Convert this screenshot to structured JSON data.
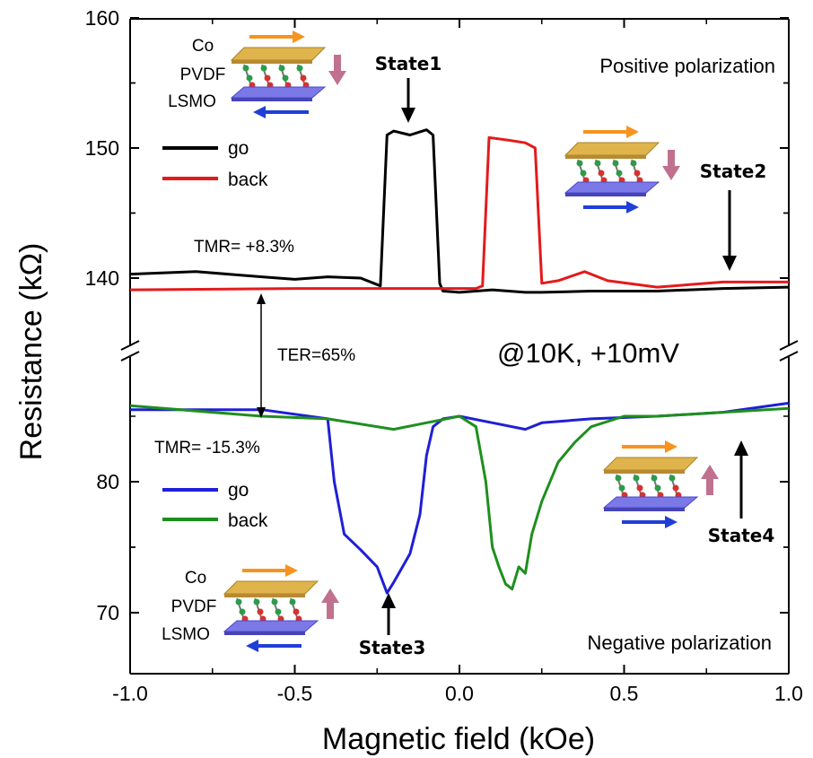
{
  "chart_data": {
    "type": "line",
    "xlabel": "Magnetic field (kOe)",
    "ylabel": "Resistance (kΩ)",
    "xlim": [
      -1.0,
      1.0
    ],
    "x_ticks": [
      "-1.0",
      "-0.5",
      "0.0",
      "0.5",
      "1.0"
    ],
    "panels": [
      {
        "name": "Positive polarization",
        "ylim": [
          135,
          160
        ],
        "y_ticks": [
          "140",
          "150",
          "160"
        ],
        "tmr": "TMR= +8.3%",
        "series": [
          {
            "name": "go",
            "color": "#000000",
            "x": [
              -1.0,
              -0.8,
              -0.6,
              -0.5,
              -0.4,
              -0.3,
              -0.24,
              -0.22,
              -0.2,
              -0.15,
              -0.1,
              -0.08,
              -0.06,
              -0.05,
              0.0,
              0.1,
              0.2,
              0.25,
              0.4,
              0.6,
              0.8,
              1.0
            ],
            "y": [
              140.3,
              140.5,
              140.1,
              139.9,
              140.1,
              140.0,
              139.4,
              151.0,
              151.3,
              151.0,
              151.4,
              151.0,
              139.6,
              139.0,
              138.9,
              139.1,
              138.9,
              138.9,
              139.0,
              139.0,
              139.2,
              139.3
            ]
          },
          {
            "name": "back",
            "color": "#e41a1c",
            "x": [
              -1.0,
              -0.5,
              -0.2,
              0.0,
              0.05,
              0.07,
              0.09,
              0.15,
              0.2,
              0.23,
              0.25,
              0.3,
              0.38,
              0.45,
              0.6,
              0.8,
              1.0
            ],
            "y": [
              139.1,
              139.2,
              139.2,
              139.2,
              139.2,
              139.4,
              150.8,
              150.6,
              150.4,
              150.0,
              139.6,
              139.8,
              140.5,
              139.8,
              139.3,
              139.7,
              139.7
            ]
          }
        ],
        "states": [
          "State1",
          "State2"
        ],
        "layers": [
          "Co",
          "PVDF",
          "LSMO"
        ]
      },
      {
        "name": "Negative polarization",
        "ylim": [
          67,
          90
        ],
        "y_ticks": [
          "70",
          "80"
        ],
        "tmr": "TMR= -15.3%",
        "series": [
          {
            "name": "go",
            "color": "#1f1fd6",
            "x": [
              -1.0,
              -0.6,
              -0.4,
              -0.38,
              -0.35,
              -0.3,
              -0.25,
              -0.22,
              -0.2,
              -0.15,
              -0.12,
              -0.1,
              -0.08,
              -0.05,
              0.0,
              0.1,
              0.2,
              0.25,
              0.4,
              0.6,
              0.8,
              1.0
            ],
            "y": [
              85.5,
              85.5,
              84.8,
              80.0,
              76.0,
              74.8,
              73.5,
              71.5,
              72.3,
              74.5,
              77.5,
              82.0,
              84.2,
              84.8,
              85.0,
              84.5,
              84.0,
              84.5,
              84.8,
              85.0,
              85.3,
              86.0
            ]
          },
          {
            "name": "back",
            "color": "#1e8f1e",
            "x": [
              -1.0,
              -0.6,
              -0.4,
              -0.2,
              -0.1,
              0.0,
              0.05,
              0.08,
              0.1,
              0.12,
              0.14,
              0.16,
              0.18,
              0.2,
              0.22,
              0.25,
              0.3,
              0.35,
              0.4,
              0.5,
              0.6,
              0.8,
              1.0
            ],
            "y": [
              85.8,
              85.0,
              84.8,
              84.0,
              84.5,
              85.0,
              84.2,
              80.0,
              75.0,
              73.5,
              72.2,
              71.8,
              73.5,
              73.0,
              76.0,
              78.5,
              81.5,
              83.0,
              84.2,
              85.0,
              85.0,
              85.3,
              85.6
            ]
          }
        ],
        "states": [
          "State3",
          "State4"
        ],
        "layers": [
          "Co",
          "PVDF",
          "LSMO"
        ]
      }
    ],
    "annotations": [
      "TER=65%",
      "@10K, +10mV"
    ]
  }
}
